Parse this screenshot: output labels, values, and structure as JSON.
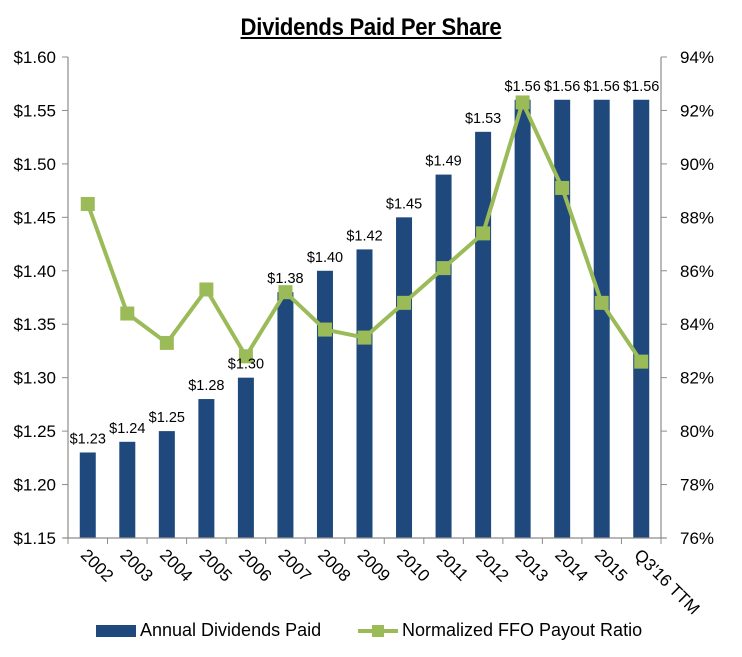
{
  "chart_data": {
    "type": "bar",
    "title": "Dividends Paid Per Share",
    "xlabel": "",
    "ylabel": "",
    "y2label": "",
    "categories": [
      "2002",
      "2003",
      "2004",
      "2005",
      "2006",
      "2007",
      "2008",
      "2009",
      "2010",
      "2011",
      "2012",
      "2013",
      "2014",
      "2015",
      "Q3'16 TTM"
    ],
    "series": [
      {
        "name": "Annual Dividends Paid",
        "type": "bar",
        "axis": "left",
        "color": "#1F497D",
        "values": [
          1.23,
          1.24,
          1.25,
          1.28,
          1.3,
          1.38,
          1.4,
          1.42,
          1.45,
          1.49,
          1.53,
          1.56,
          1.56,
          1.56,
          1.56
        ],
        "data_labels": [
          "$1.23",
          "$1.24",
          "$1.25",
          "$1.28",
          "$1.30",
          "$1.38",
          "$1.40",
          "$1.42",
          "$1.45",
          "$1.49",
          "$1.53",
          "$1.56",
          "$1.56",
          "$1.56",
          "$1.56"
        ]
      },
      {
        "name": "Normalized FFO Payout Ratio",
        "type": "line",
        "axis": "right",
        "color": "#9BBB59",
        "marker": "square",
        "values": [
          88.5,
          84.4,
          83.3,
          85.3,
          82.8,
          85.2,
          83.8,
          83.5,
          84.8,
          86.1,
          87.4,
          92.3,
          89.1,
          84.8,
          82.6
        ]
      }
    ],
    "y_left": {
      "ylim": [
        1.15,
        1.6
      ],
      "ticks": [
        1.15,
        1.2,
        1.25,
        1.3,
        1.35,
        1.4,
        1.45,
        1.5,
        1.55,
        1.6
      ],
      "tick_labels": [
        "$1.15",
        "$1.20",
        "$1.25",
        "$1.30",
        "$1.35",
        "$1.40",
        "$1.45",
        "$1.50",
        "$1.55",
        "$1.60"
      ]
    },
    "y_right": {
      "ylim": [
        76,
        94
      ],
      "ticks": [
        76,
        78,
        80,
        82,
        84,
        86,
        88,
        90,
        92,
        94
      ],
      "tick_labels": [
        "76%",
        "78%",
        "80%",
        "82%",
        "84%",
        "86%",
        "88%",
        "90%",
        "92%",
        "94%"
      ]
    },
    "grid": false,
    "legend": {
      "placement": "bottom"
    }
  },
  "legend": {
    "bar_label": "Annual Dividends Paid",
    "line_label": "Normalized FFO Payout Ratio"
  }
}
